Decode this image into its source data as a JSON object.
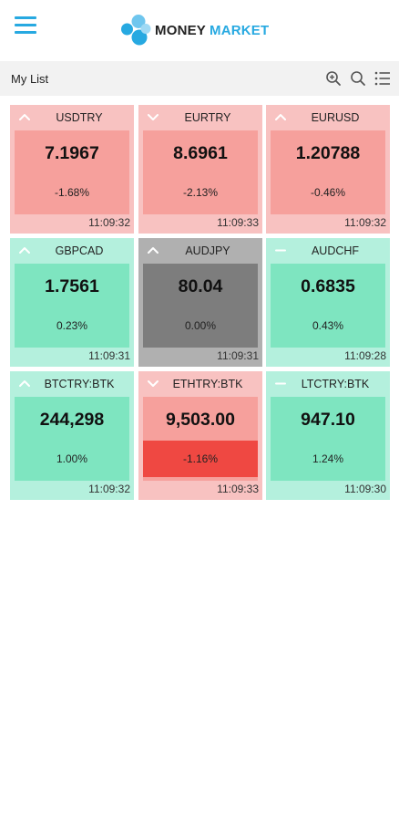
{
  "header": {
    "brand_word1": "MONEY",
    "brand_word2": "MARKET",
    "accent_color": "#27a9e1"
  },
  "list": {
    "title": "My List",
    "tools": [
      "zoom-in-icon",
      "search-icon",
      "list-view-icon"
    ]
  },
  "colors": {
    "down_tile": "#f8c2c1",
    "down_body": "#f6a09c",
    "up_tile": "#b4f0dd",
    "up_body": "#7ee5c0",
    "flat_tile": "#b0b0b0",
    "flat_body": "#7d7d7d",
    "alert_red": "#ef4842"
  },
  "tiles": [
    {
      "symbol": "USDTRY",
      "price": "7.1967",
      "change": "-1.68%",
      "time": "11:09:32",
      "trend": "down",
      "direction_icon": "chevron-up-icon"
    },
    {
      "symbol": "EURTRY",
      "price": "8.6961",
      "change": "-2.13%",
      "time": "11:09:33",
      "trend": "down",
      "direction_icon": "chevron-down-icon"
    },
    {
      "symbol": "EURUSD",
      "price": "1.20788",
      "change": "-0.46%",
      "time": "11:09:32",
      "trend": "down",
      "direction_icon": "chevron-up-icon"
    },
    {
      "symbol": "GBPCAD",
      "price": "1.7561",
      "change": "0.23%",
      "time": "11:09:31",
      "trend": "up",
      "direction_icon": "chevron-up-icon"
    },
    {
      "symbol": "AUDJPY",
      "price": "80.04",
      "change": "0.00%",
      "time": "11:09:31",
      "trend": "flat",
      "direction_icon": "chevron-up-icon"
    },
    {
      "symbol": "AUDCHF",
      "price": "0.6835",
      "change": "0.43%",
      "time": "11:09:28",
      "trend": "up",
      "direction_icon": "minus-icon"
    },
    {
      "symbol": "BTCTRY:BTK",
      "price": "244,298",
      "change": "1.00%",
      "time": "11:09:32",
      "trend": "up",
      "direction_icon": "chevron-up-icon"
    },
    {
      "symbol": "ETHTRY:BTK",
      "price": "9,503.00",
      "change": "-1.16%",
      "time": "11:09:33",
      "trend": "down",
      "direction_icon": "chevron-down-icon",
      "highlight_change": true
    },
    {
      "symbol": "LTCTRY:BTK",
      "price": "947.10",
      "change": "1.24%",
      "time": "11:09:30",
      "trend": "up",
      "direction_icon": "minus-icon"
    }
  ]
}
